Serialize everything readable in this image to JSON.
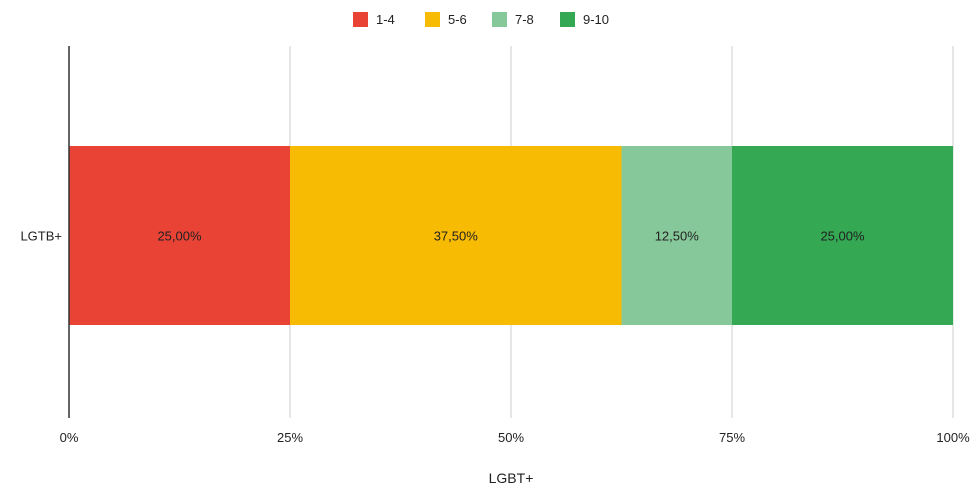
{
  "chart_data": {
    "type": "bar",
    "orientation": "horizontal",
    "stacked": "percent",
    "title": "",
    "xlabel": "LGBT+",
    "ylabel": "",
    "categories": [
      "LGTB+"
    ],
    "series": [
      {
        "name": "1-4",
        "values": [
          25.0
        ],
        "color": "#e94335",
        "label": "25,00%"
      },
      {
        "name": "5-6",
        "values": [
          37.5
        ],
        "color": "#f8bb03",
        "label": "37,50%"
      },
      {
        "name": "7-8",
        "values": [
          12.5
        ],
        "color": "#87c89b",
        "label": "12,50%"
      },
      {
        "name": "9-10",
        "values": [
          25.0
        ],
        "color": "#34a853",
        "label": "25,00%"
      }
    ],
    "xlim": [
      0,
      100
    ],
    "x_ticks": [
      0,
      25,
      50,
      75,
      100
    ],
    "x_tick_labels": [
      "0%",
      "25%",
      "50%",
      "75%",
      "100%"
    ],
    "grid": true,
    "legend_position": "top-center"
  }
}
